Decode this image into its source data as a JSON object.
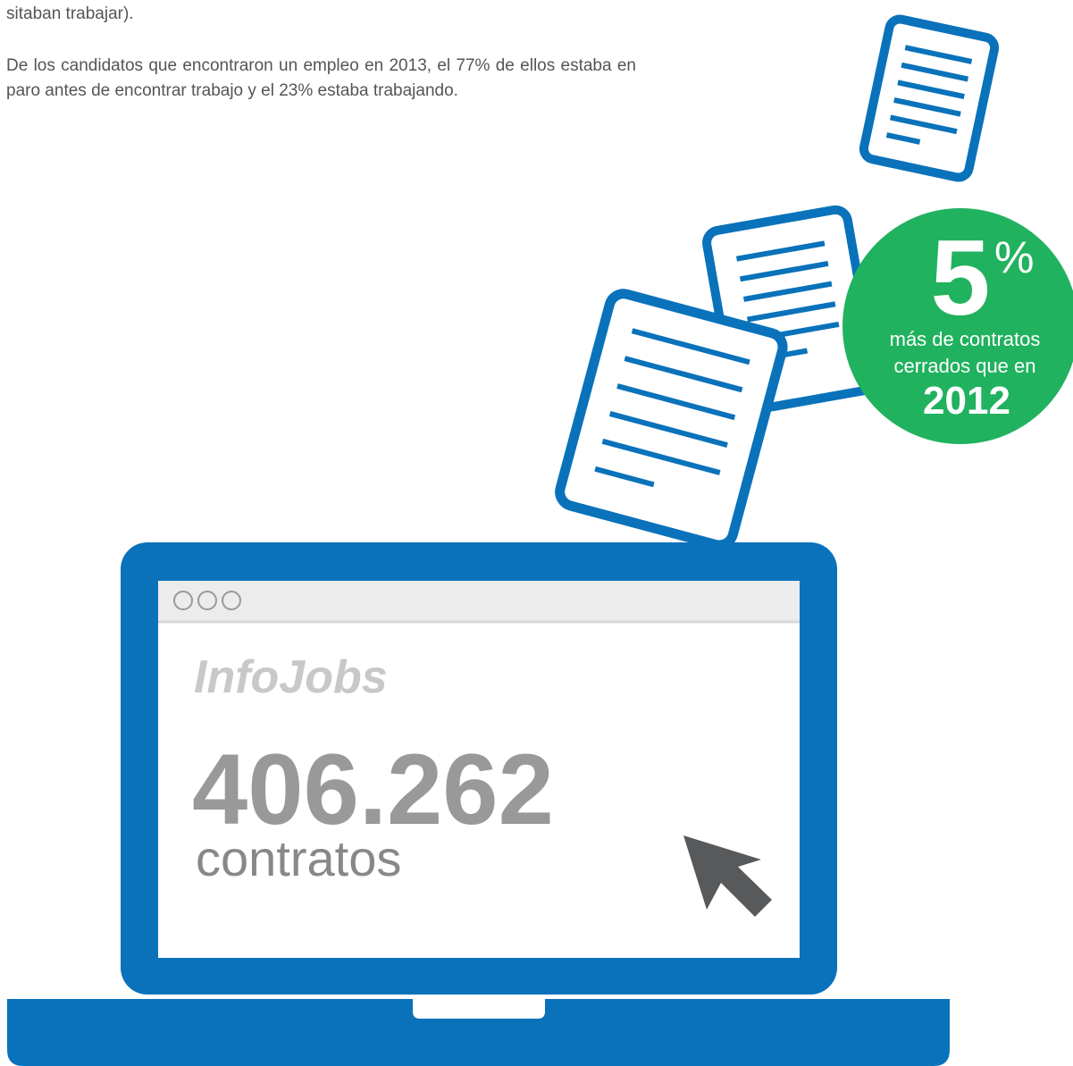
{
  "intro": {
    "fragment": "sitaban trabajar).",
    "paragraph": "De los candidatos que encontraron un empleo en 2013, el 77% de ellos estaba en paro antes de encontrar trabajo y el 23% estaba trabajando."
  },
  "badge": {
    "number": "5",
    "unit": "%",
    "line1": "más de contratos",
    "line2": "cerrados que en",
    "year": "2012"
  },
  "screen": {
    "brand": "InfoJobs",
    "total": "406.262",
    "caption": "contratos"
  }
}
